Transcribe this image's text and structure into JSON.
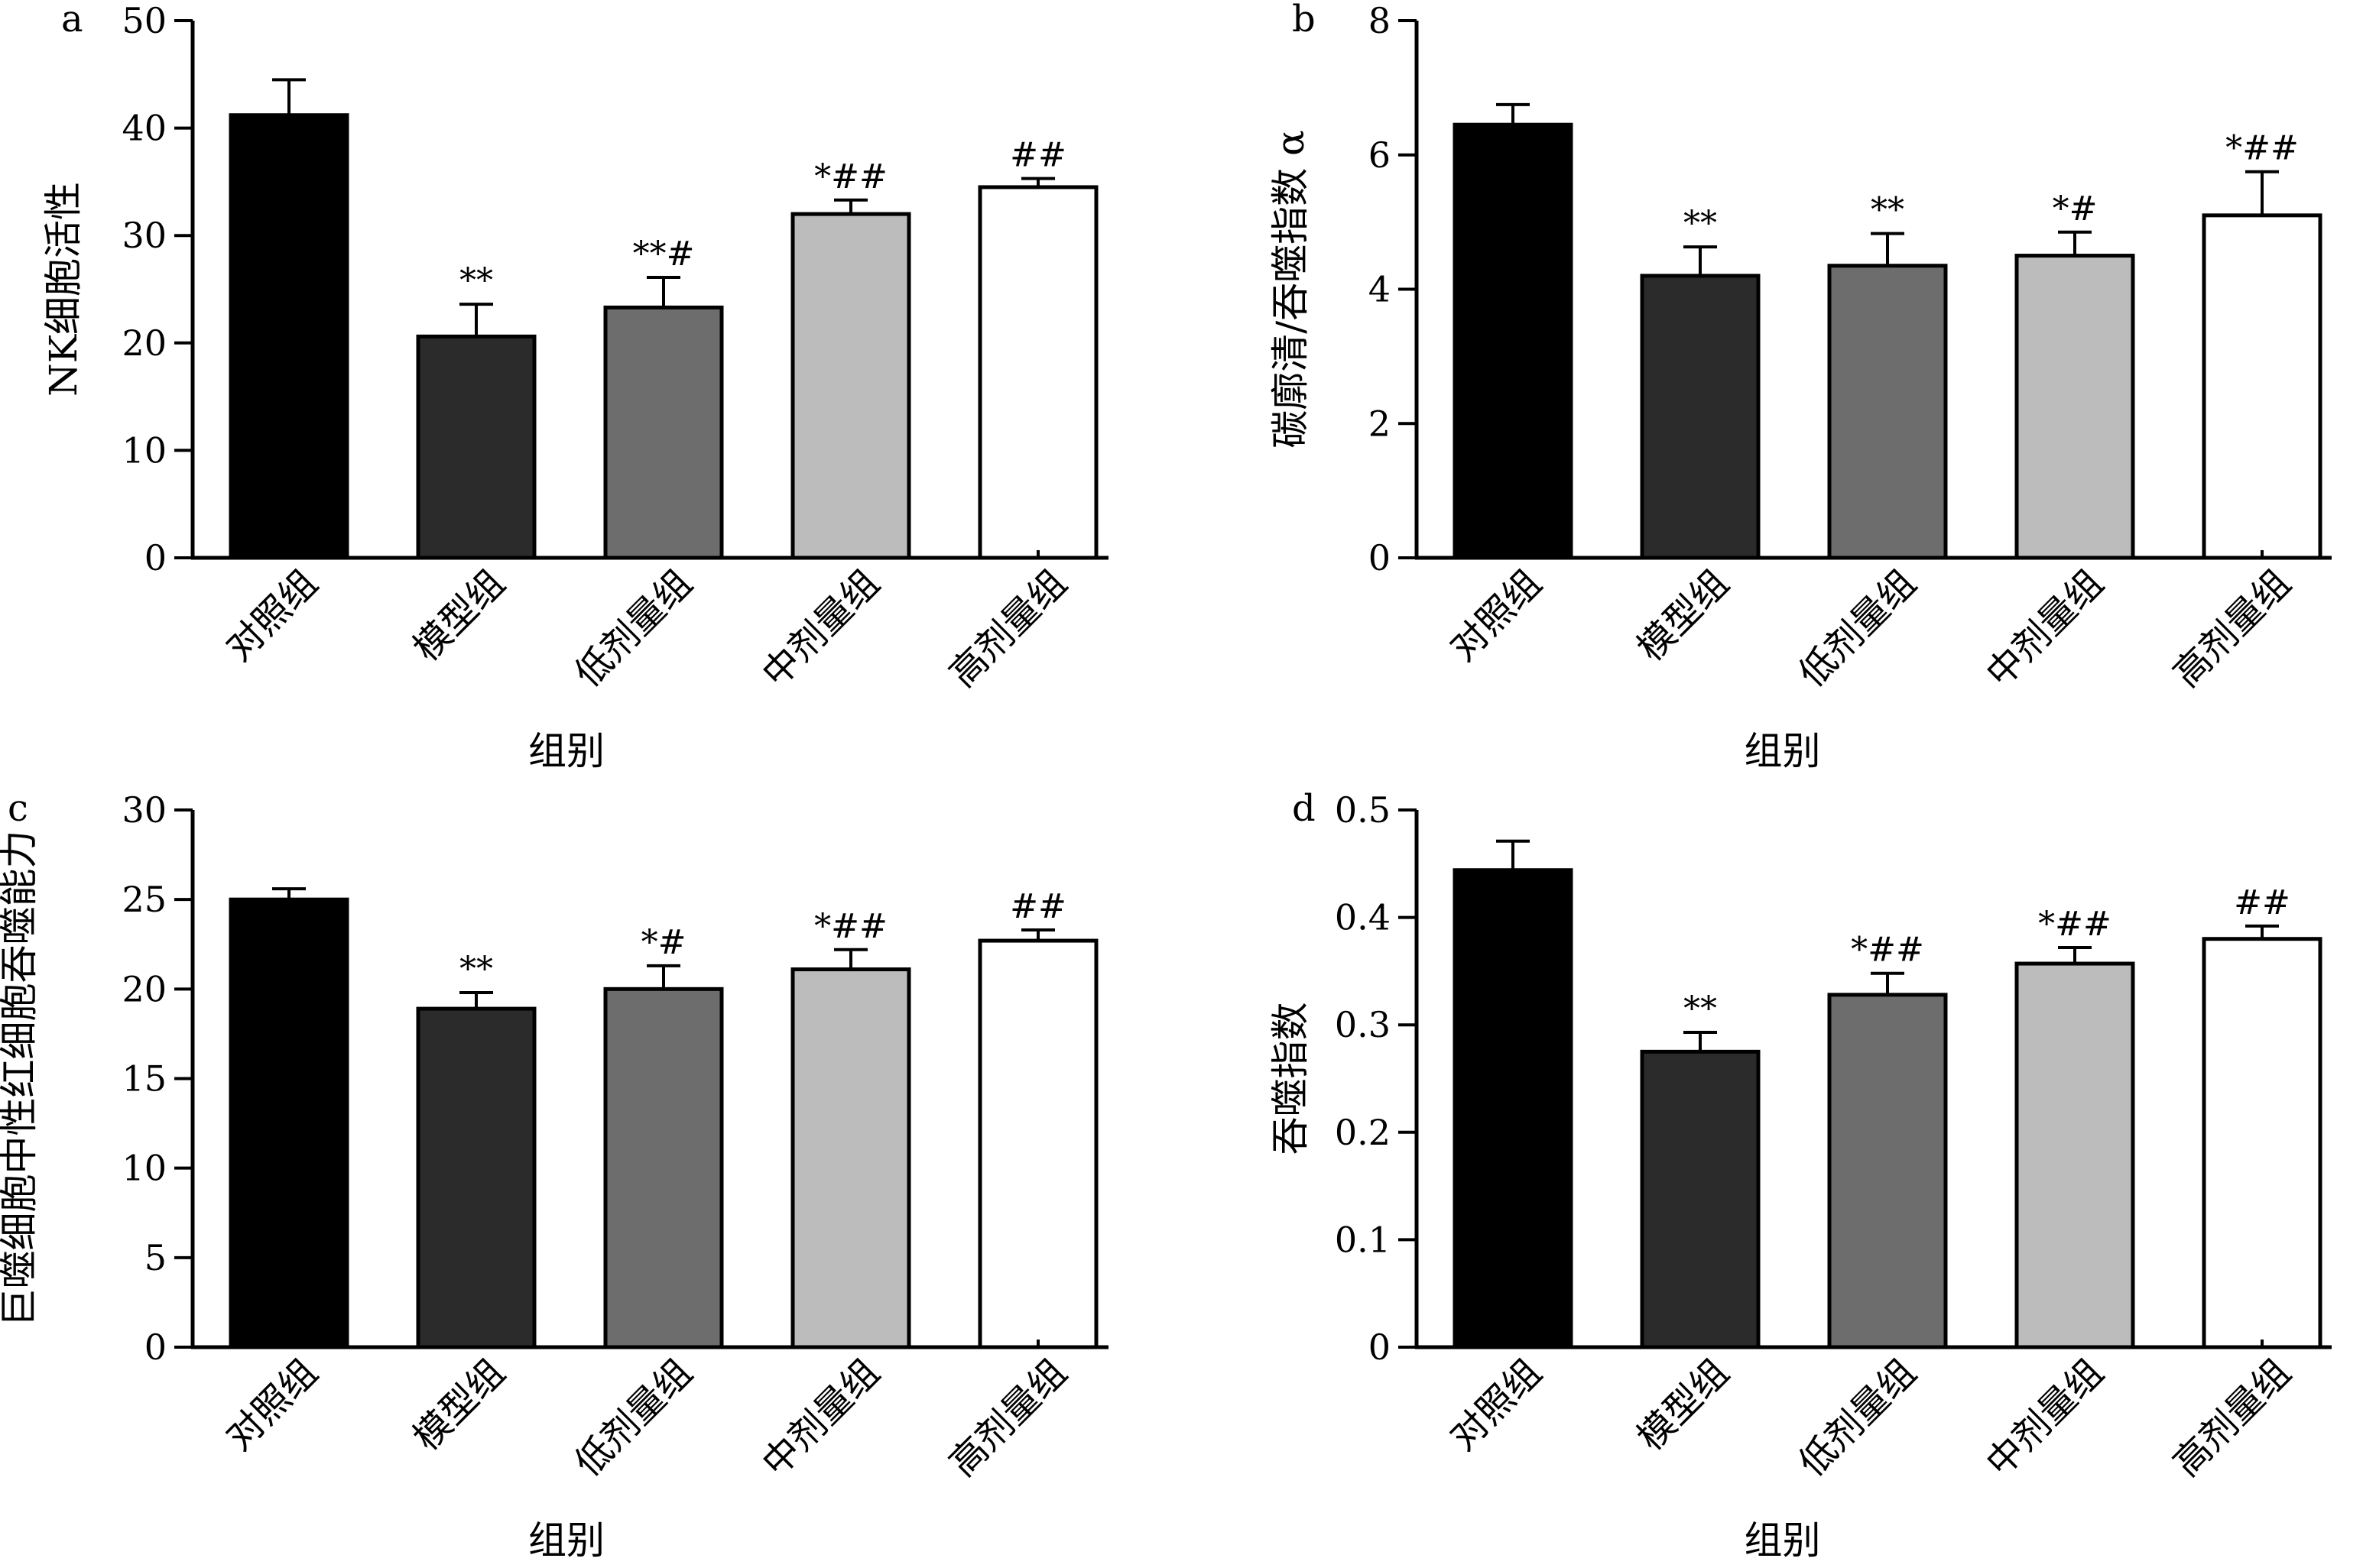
{
  "chart_data": [
    {
      "type": "bar",
      "panel_label": "a",
      "categories": [
        "对照组",
        "模型组",
        "低剂量组",
        "中剂量组",
        "高剂量组"
      ],
      "values": [
        41.2,
        20.6,
        23.3,
        32.0,
        34.5
      ],
      "errors": [
        3.3,
        3.0,
        2.8,
        1.3,
        0.8
      ],
      "annotations": [
        "",
        "**",
        "**#",
        "*##",
        "##"
      ],
      "ylabel": "NK细胞活性",
      "xlabel": "组别",
      "ylim": [
        0,
        50
      ],
      "yticks": [
        "0",
        "10",
        "20",
        "30",
        "40",
        "50"
      ],
      "colors": [
        "#000000",
        "#2b2b2b",
        "#6d6d6d",
        "#bcbcbc",
        "#ffffff"
      ],
      "grid": false
    },
    {
      "type": "bar",
      "panel_label": "b",
      "categories": [
        "对照组",
        "模型组",
        "低剂量组",
        "中剂量组",
        "高剂量组"
      ],
      "values": [
        6.45,
        4.2,
        4.35,
        4.5,
        5.1
      ],
      "errors": [
        0.3,
        0.43,
        0.48,
        0.35,
        0.65
      ],
      "annotations": [
        "",
        "**",
        "**",
        "*#",
        "*##"
      ],
      "ylabel": "碳廓清/吞噬指数 α",
      "xlabel": "组别",
      "ylim": [
        0,
        8
      ],
      "yticks": [
        "0",
        "2",
        "4",
        "6",
        "8"
      ],
      "colors": [
        "#000000",
        "#2b2b2b",
        "#6d6d6d",
        "#bcbcbc",
        "#ffffff"
      ],
      "grid": false
    },
    {
      "type": "bar",
      "panel_label": "c",
      "categories": [
        "对照组",
        "模型组",
        "低剂量组",
        "中剂量组",
        "高剂量组"
      ],
      "values": [
        25.0,
        18.9,
        20.0,
        21.1,
        22.7
      ],
      "errors": [
        0.6,
        0.9,
        1.3,
        1.1,
        0.6
      ],
      "annotations": [
        "",
        "**",
        "*#",
        "*##",
        "##"
      ],
      "ylabel": "巨噬细胞中性红细胞吞噬能力",
      "xlabel": "组别",
      "ylim": [
        0,
        30
      ],
      "yticks": [
        "0",
        "5",
        "10",
        "15",
        "20",
        "25",
        "30"
      ],
      "colors": [
        "#000000",
        "#2b2b2b",
        "#6d6d6d",
        "#bcbcbc",
        "#ffffff"
      ],
      "grid": false
    },
    {
      "type": "bar",
      "panel_label": "d",
      "categories": [
        "对照组",
        "模型组",
        "低剂量组",
        "中剂量组",
        "高剂量组"
      ],
      "values": [
        0.444,
        0.275,
        0.328,
        0.357,
        0.38
      ],
      "errors": [
        0.027,
        0.018,
        0.02,
        0.015,
        0.012
      ],
      "annotations": [
        "",
        "**",
        "*##",
        "*##",
        "##"
      ],
      "ylabel": "吞噬指数",
      "xlabel": "组别",
      "ylim": [
        0,
        0.5
      ],
      "yticks": [
        "0",
        "0.1",
        "0.2",
        "0.3",
        "0.4",
        "0.5"
      ],
      "colors": [
        "#000000",
        "#2b2b2b",
        "#6d6d6d",
        "#bcbcbc",
        "#ffffff"
      ],
      "grid": false
    }
  ]
}
